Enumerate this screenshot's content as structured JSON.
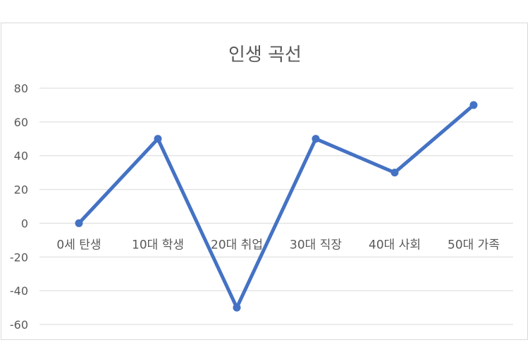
{
  "chart_data": {
    "type": "line",
    "title": "인생 곡선",
    "categories": [
      "0세 탄생",
      "10대 학생",
      "20대 취업",
      "30대 직장",
      "40대 사회",
      "50대 가족"
    ],
    "series": [
      {
        "values": [
          0,
          50,
          -50,
          50,
          30,
          70
        ]
      }
    ],
    "ylim": [
      -60,
      80
    ],
    "yticks": [
      80,
      60,
      40,
      20,
      0,
      -20,
      -40,
      -60
    ],
    "xlabel": "",
    "ylabel": "",
    "grid": true,
    "legend": "none",
    "colors": {
      "series": "#4472c4",
      "grid": "#d9d9d9",
      "text": "#595959"
    }
  }
}
